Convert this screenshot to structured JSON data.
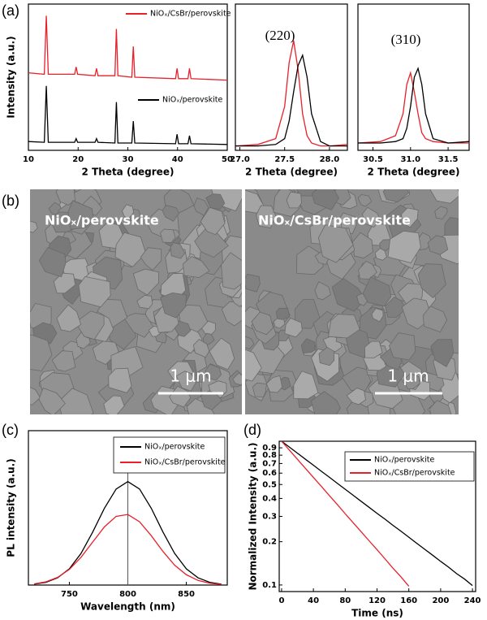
{
  "panel_labels": [
    "(a)",
    "(b)",
    "(c)",
    "(d)"
  ],
  "sem_images": [
    {
      "label": "NiOₓ/perovskite",
      "scale_bar": "1 μm"
    },
    {
      "label": "NiOₓ/CsBr/perovskite",
      "scale_bar": "1 μm"
    }
  ],
  "chart_data": [
    {
      "type": "line",
      "xlabel": "2 Theta (degree)",
      "ylabel": "Intensity (a.u.)",
      "xlim": [
        10,
        50
      ],
      "ylim": [
        0,
        100
      ],
      "xticks": [
        10,
        20,
        30,
        40,
        50
      ],
      "legend": "right",
      "series": [
        {
          "name": "NiOₓ/CsBr/perovskite",
          "color": "#e8202a",
          "x": [
            10,
            13.2,
            13.6,
            14.0,
            19.3,
            19.6,
            19.9,
            23.4,
            23.7,
            24.0,
            27.4,
            27.7,
            28.0,
            30.8,
            31.1,
            31.4,
            39.6,
            39.9,
            40.2,
            42.1,
            42.4,
            42.7,
            50
          ],
          "values": [
            53,
            52,
            92,
            52,
            52,
            57,
            52,
            51,
            56,
            51,
            51,
            83,
            51,
            50,
            71,
            50,
            49,
            56,
            49,
            49,
            56,
            49,
            48
          ]
        },
        {
          "name": "NiOₓ/perovskite",
          "color": "#000000",
          "x": [
            10,
            13.2,
            13.6,
            14.0,
            19.3,
            19.6,
            19.9,
            23.4,
            23.7,
            24.0,
            27.4,
            27.7,
            28.0,
            30.8,
            31.1,
            31.4,
            39.6,
            39.9,
            40.2,
            42.1,
            42.4,
            42.7,
            50
          ],
          "values": [
            6,
            5.5,
            44,
            5.5,
            5.5,
            8,
            5.5,
            5.5,
            8,
            5.5,
            5,
            33,
            5,
            5,
            20,
            5,
            4.5,
            11,
            4.5,
            4.5,
            10,
            4.5,
            4
          ]
        }
      ]
    },
    {
      "type": "line",
      "xlabel": "2 Theta (degree)",
      "annotation": "(220)",
      "xlim": [
        26.95,
        28.2
      ],
      "ylim": [
        0,
        100
      ],
      "xticks": [
        {
          "value": 27,
          "label": "27.0"
        },
        27.5,
        {
          "value": 28,
          "label": "28.0"
        }
      ],
      "series": [
        {
          "name": "NiOₓ/CsBr/perovskite",
          "color": "#e8202a",
          "x": [
            26.95,
            27.2,
            27.4,
            27.5,
            27.55,
            27.6,
            27.65,
            27.7,
            27.75,
            27.8,
            27.9,
            28.0,
            28.2
          ],
          "values": [
            3,
            4,
            8,
            30,
            60,
            75,
            55,
            25,
            10,
            5,
            3,
            3,
            4
          ]
        },
        {
          "name": "NiOₓ/perovskite",
          "color": "#000000",
          "x": [
            26.95,
            27.2,
            27.4,
            27.5,
            27.55,
            27.6,
            27.65,
            27.7,
            27.75,
            27.8,
            27.9,
            28.0,
            28.2
          ],
          "values": [
            3,
            3,
            4,
            8,
            20,
            40,
            58,
            65,
            50,
            25,
            6,
            3,
            3
          ]
        }
      ]
    },
    {
      "type": "line",
      "xlabel": "2 Theta (degree)",
      "annotation": "(310)",
      "xlim": [
        30.3,
        31.78
      ],
      "ylim": [
        0,
        100
      ],
      "xticks": [
        30.5,
        {
          "value": 31,
          "label": "31.0"
        },
        31.5
      ],
      "series": [
        {
          "name": "NiOₓ/CsBr/perovskite",
          "color": "#e8202a",
          "x": [
            30.3,
            30.6,
            30.8,
            30.9,
            30.95,
            31.0,
            31.05,
            31.1,
            31.15,
            31.2,
            31.3,
            31.5,
            31.78
          ],
          "values": [
            5,
            6,
            10,
            25,
            45,
            53,
            40,
            25,
            12,
            8,
            6,
            5,
            5
          ]
        },
        {
          "name": "NiOₓ/perovskite",
          "color": "#000000",
          "x": [
            30.3,
            30.6,
            30.8,
            30.9,
            30.95,
            31.0,
            31.05,
            31.1,
            31.15,
            31.2,
            31.3,
            31.5,
            31.78
          ],
          "values": [
            5,
            5,
            6,
            8,
            15,
            30,
            50,
            56,
            45,
            25,
            8,
            5,
            6
          ]
        }
      ]
    },
    {
      "type": "line",
      "xlabel": "Wavelength (nm)",
      "ylabel": "PL intensity (a.u.)",
      "xlim": [
        715,
        885
      ],
      "ylim": [
        0,
        100
      ],
      "xticks": [
        750,
        800,
        850
      ],
      "legend": "upper right",
      "vline": 800,
      "series": [
        {
          "name": "NiOₓ/perovskite",
          "color": "#000000",
          "x": [
            720,
            730,
            740,
            750,
            760,
            770,
            780,
            790,
            800,
            810,
            820,
            830,
            840,
            850,
            860,
            870,
            880
          ],
          "values": [
            0.6,
            1.8,
            4.7,
            10.5,
            20.5,
            34.4,
            49.8,
            62.2,
            67,
            62.2,
            49.8,
            34.4,
            20.5,
            10.5,
            4.7,
            1.8,
            0.6
          ]
        },
        {
          "name": "NiOₓ/CsBr/perovskite",
          "color": "#e8202a",
          "x": [
            720,
            730,
            740,
            750,
            760,
            770,
            780,
            790,
            800,
            810,
            820,
            830,
            840,
            850,
            860,
            870,
            880
          ],
          "values": [
            0.8,
            2.1,
            5.0,
            10.1,
            18.0,
            27.9,
            37.7,
            44.5,
            45.7,
            41.0,
            32.0,
            21.8,
            12.9,
            6.7,
            3.0,
            1.2,
            0.4
          ]
        }
      ]
    },
    {
      "type": "line",
      "xlabel": "Time (ns)",
      "ylabel": "Normalized Intensity (a.u.)",
      "xlim": [
        -3,
        244
      ],
      "ylim": [
        0.09,
        1.0
      ],
      "log_y": true,
      "xticks": [
        0,
        40,
        80,
        120,
        160,
        200,
        240
      ],
      "yticks": [
        0.1,
        0.2,
        0.3,
        0.4,
        0.5,
        0.6,
        0.7,
        0.8,
        0.9
      ],
      "legend": "upper right",
      "series": [
        {
          "name": "NiOₓ/perovskite",
          "color": "#000000",
          "x": [
            0,
            10,
            20,
            30,
            40,
            50,
            60,
            70,
            80,
            90,
            100,
            110,
            120,
            130,
            140,
            150,
            160,
            170,
            180,
            190,
            200,
            210,
            220,
            230,
            240
          ],
          "values": [
            1,
            0.908,
            0.825,
            0.749,
            0.681,
            0.618,
            0.562,
            0.51,
            0.463,
            0.421,
            0.382,
            0.347,
            0.315,
            0.287,
            0.26,
            0.237,
            0.215,
            0.195,
            0.177,
            0.161,
            0.146,
            0.133,
            0.12,
            0.11,
            0.099
          ]
        },
        {
          "name": "NiOₓ/CsBr/perovskite",
          "color": "#e8202a",
          "x": [
            0,
            10,
            20,
            30,
            40,
            50,
            60,
            70,
            80,
            90,
            100,
            110,
            120,
            130,
            140,
            150,
            160
          ],
          "values": [
            1,
            0.865,
            0.748,
            0.647,
            0.56,
            0.485,
            0.419,
            0.363,
            0.313,
            0.271,
            0.235,
            0.203,
            0.176,
            0.152,
            0.131,
            0.114,
            0.098
          ]
        }
      ]
    }
  ]
}
